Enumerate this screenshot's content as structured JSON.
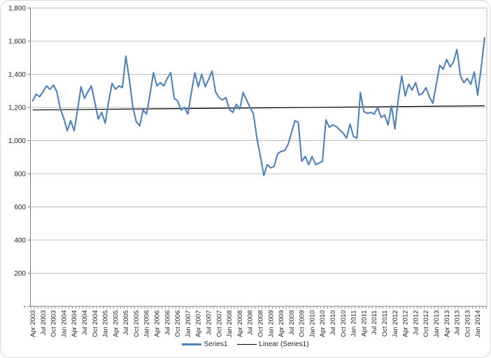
{
  "chart_data": {
    "type": "line",
    "title": "",
    "xlabel": "",
    "ylabel": "",
    "y_axis": {
      "min": 0,
      "max": 1800,
      "step": 200,
      "tick_labels_top_to_bottom": [
        "1,800",
        "1,600",
        "1,400",
        "1,200",
        "1,000",
        "800",
        "600",
        "400",
        "200",
        "-"
      ]
    },
    "x_axis": {
      "interval": "monthly",
      "start": "Apr 2003",
      "end": "Mar 2014",
      "labels_every_n_months": 3,
      "tick_labels": [
        "Apr 2003",
        "Jul 2003",
        "Oct 2003",
        "Jan 2004",
        "Apr 2004",
        "Jul 2004",
        "Oct 2004",
        "Jan 2005",
        "Apr 2005",
        "Jul 2005",
        "Oct 2005",
        "Jan 2006",
        "Apr 2006",
        "Jul 2006",
        "Oct 2006",
        "Jan 2007",
        "Apr 2007",
        "Jul 2007",
        "Oct 2007",
        "Jan 2008",
        "Apr 2008",
        "Jul 2008",
        "Oct 2008",
        "Jan 2009",
        "Apr 2009",
        "Jul 2009",
        "Oct 2009",
        "Jan 2010",
        "Apr 2010",
        "Jul 2010",
        "Oct 2010",
        "Jan 2011",
        "Apr 2011",
        "Jul 2011",
        "Oct 2011",
        "Jan 2012",
        "Apr 2012",
        "Jul 2012",
        "Oct 2012",
        "Jan 2013",
        "Apr 2013",
        "Jul 2013",
        "Oct 2013",
        "Jan 2014"
      ]
    },
    "series": [
      {
        "name": "Series1",
        "color": "#4F81BD",
        "monthly_values": [
          1240,
          1280,
          1265,
          1295,
          1330,
          1310,
          1335,
          1295,
          1190,
          1135,
          1060,
          1120,
          1060,
          1185,
          1325,
          1255,
          1295,
          1330,
          1230,
          1130,
          1170,
          1105,
          1235,
          1345,
          1310,
          1330,
          1320,
          1510,
          1370,
          1205,
          1115,
          1090,
          1185,
          1160,
          1280,
          1410,
          1330,
          1350,
          1330,
          1375,
          1410,
          1255,
          1240,
          1185,
          1200,
          1160,
          1290,
          1410,
          1325,
          1400,
          1325,
          1370,
          1420,
          1295,
          1260,
          1245,
          1260,
          1190,
          1170,
          1220,
          1190,
          1290,
          1245,
          1200,
          1160,
          1015,
          905,
          790,
          855,
          835,
          845,
          920,
          935,
          940,
          975,
          1045,
          1120,
          1110,
          875,
          905,
          855,
          905,
          855,
          865,
          875,
          1125,
          1080,
          1095,
          1085,
          1065,
          1045,
          1015,
          1100,
          1025,
          1015,
          1290,
          1175,
          1165,
          1170,
          1160,
          1200,
          1140,
          1155,
          1095,
          1210,
          1070,
          1255,
          1390,
          1270,
          1340,
          1305,
          1350,
          1275,
          1285,
          1320,
          1265,
          1225,
          1340,
          1455,
          1430,
          1490,
          1445,
          1475,
          1550,
          1390,
          1350,
          1375,
          1340,
          1415,
          1275,
          1440,
          1620
        ]
      }
    ],
    "trendline": {
      "name": "Linear (Series1)",
      "color": "#000000",
      "start_value": 1185,
      "end_value": 1210
    },
    "legend": {
      "position": "bottom-center",
      "entries": [
        "Series1",
        "Linear (Series1)"
      ]
    },
    "grid": "horizontal-on",
    "colors": {
      "series_line": "#4F81BD",
      "trend_line": "#000000",
      "gridline": "#BFBFBF",
      "axis_line": "#808080",
      "plot_right_border": "#BFBFBF",
      "label_text": "#262626",
      "chart_border": "#D9D9D9",
      "background": "#FFFFFF"
    }
  }
}
